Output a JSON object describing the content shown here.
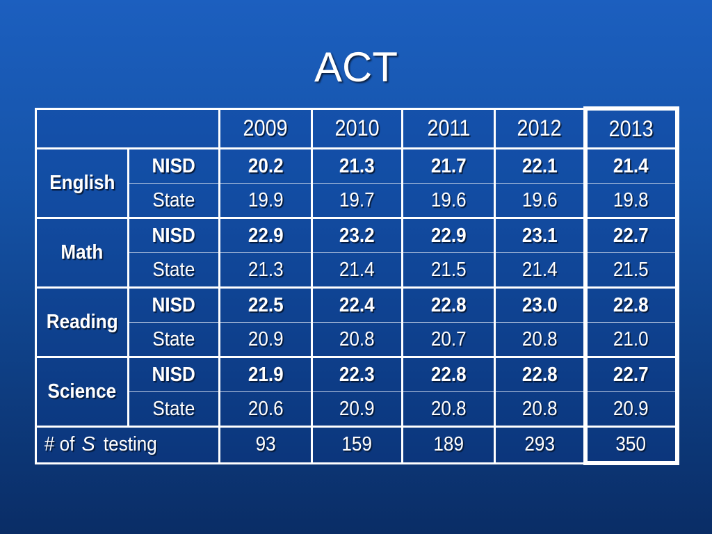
{
  "title": "ACT",
  "years": [
    "2009",
    "2010",
    "2011",
    "2012",
    "2013"
  ],
  "subjects": [
    {
      "name": "English",
      "nisd_label": "NISD",
      "state_label": "State",
      "nisd": [
        "20.2",
        "21.3",
        "21.7",
        "22.1",
        "21.4"
      ],
      "state": [
        "19.9",
        "19.7",
        "19.6",
        "19.6",
        "19.8"
      ]
    },
    {
      "name": "Math",
      "nisd_label": "NISD",
      "state_label": "State",
      "nisd": [
        "22.9",
        "23.2",
        "22.9",
        "23.1",
        "22.7"
      ],
      "state": [
        "21.3",
        "21.4",
        "21.5",
        "21.4",
        "21.5"
      ]
    },
    {
      "name": "Reading",
      "nisd_label": "NISD",
      "state_label": "State",
      "nisd": [
        "22.5",
        "22.4",
        "22.8",
        "23.0",
        "22.8"
      ],
      "state": [
        "20.9",
        "20.8",
        "20.7",
        "20.8",
        "21.0"
      ]
    },
    {
      "name": "Science",
      "nisd_label": "NISD",
      "state_label": "State",
      "nisd": [
        "21.9",
        "22.3",
        "22.8",
        "22.8",
        "22.7"
      ],
      "state": [
        "20.6",
        "20.9",
        "20.8",
        "20.8",
        "20.9"
      ]
    }
  ],
  "testing": {
    "label_prefix": "# of ",
    "label_s": "S",
    "label_suffix": " testing",
    "values": [
      "93",
      "159",
      "189",
      "293",
      "350"
    ]
  }
}
